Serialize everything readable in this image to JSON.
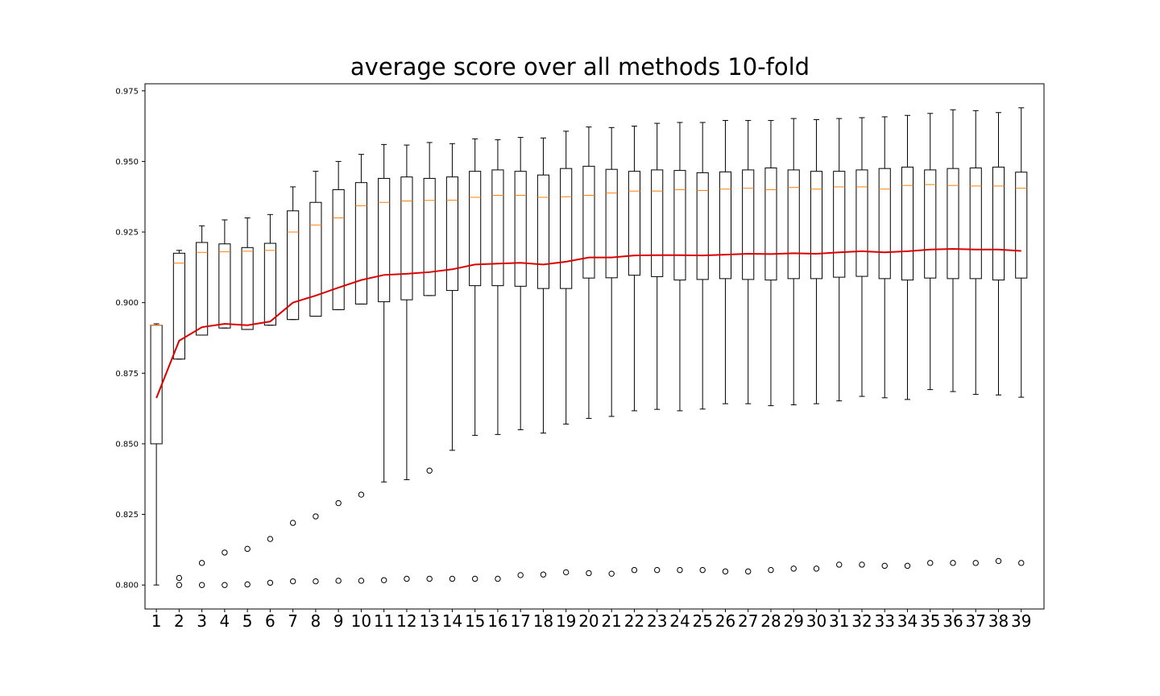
{
  "chart_data": {
    "type": "box",
    "title": "average score over all methods 10-fold",
    "xlabel": "",
    "ylabel": "",
    "ylim": [
      0.7915,
      0.9775
    ],
    "yticks": [
      "0.800",
      "0.825",
      "0.850",
      "0.875",
      "0.900",
      "0.925",
      "0.950",
      "0.975"
    ],
    "categories": [
      "1",
      "2",
      "3",
      "4",
      "5",
      "6",
      "7",
      "8",
      "9",
      "10",
      "11",
      "12",
      "13",
      "14",
      "15",
      "16",
      "17",
      "18",
      "19",
      "20",
      "21",
      "22",
      "23",
      "24",
      "25",
      "26",
      "27",
      "28",
      "29",
      "30",
      "31",
      "32",
      "33",
      "34",
      "35",
      "36",
      "37",
      "38",
      "39"
    ],
    "boxes": [
      {
        "whislo": 0.8,
        "q1": 0.85,
        "med": 0.892,
        "q3": 0.892,
        "whishi": 0.8925,
        "fliers": []
      },
      {
        "whislo": 0.88,
        "q1": 0.88,
        "med": 0.914,
        "q3": 0.9175,
        "whishi": 0.9185,
        "fliers": [
          0.8025,
          0.8
        ]
      },
      {
        "whislo": 0.8885,
        "q1": 0.8885,
        "med": 0.9178,
        "q3": 0.9213,
        "whishi": 0.9272,
        "fliers": [
          0.8078,
          0.8
        ]
      },
      {
        "whislo": 0.891,
        "q1": 0.891,
        "med": 0.918,
        "q3": 0.9208,
        "whishi": 0.9293,
        "fliers": [
          0.8115,
          0.8
        ]
      },
      {
        "whislo": 0.8905,
        "q1": 0.8905,
        "med": 0.9182,
        "q3": 0.9195,
        "whishi": 0.93,
        "fliers": [
          0.8128,
          0.8002
        ]
      },
      {
        "whislo": 0.892,
        "q1": 0.892,
        "med": 0.9185,
        "q3": 0.921,
        "whishi": 0.9312,
        "fliers": [
          0.8163,
          0.8008
        ]
      },
      {
        "whislo": 0.894,
        "q1": 0.894,
        "med": 0.925,
        "q3": 0.9325,
        "whishi": 0.941,
        "fliers": [
          0.822,
          0.8013
        ]
      },
      {
        "whislo": 0.8952,
        "q1": 0.8952,
        "med": 0.9275,
        "q3": 0.9355,
        "whishi": 0.9465,
        "fliers": [
          0.8243,
          0.8013
        ]
      },
      {
        "whislo": 0.8975,
        "q1": 0.8975,
        "med": 0.93,
        "q3": 0.94,
        "whishi": 0.95,
        "fliers": [
          0.829,
          0.8015
        ]
      },
      {
        "whislo": 0.8995,
        "q1": 0.8995,
        "med": 0.9343,
        "q3": 0.9425,
        "whishi": 0.9525,
        "fliers": [
          0.832,
          0.8015
        ]
      },
      {
        "whislo": 0.8365,
        "q1": 0.9003,
        "med": 0.9355,
        "q3": 0.944,
        "whishi": 0.956,
        "fliers": [
          0.8017
        ]
      },
      {
        "whislo": 0.8373,
        "q1": 0.901,
        "med": 0.936,
        "q3": 0.9445,
        "whishi": 0.9558,
        "fliers": [
          0.8022
        ]
      },
      {
        "whislo": 0.9025,
        "q1": 0.9025,
        "med": 0.9362,
        "q3": 0.944,
        "whishi": 0.9567,
        "fliers": [
          0.8405,
          0.8022
        ]
      },
      {
        "whislo": 0.8477,
        "q1": 0.9043,
        "med": 0.9363,
        "q3": 0.9445,
        "whishi": 0.9563,
        "fliers": [
          0.8022
        ]
      },
      {
        "whislo": 0.853,
        "q1": 0.906,
        "med": 0.9373,
        "q3": 0.9465,
        "whishi": 0.958,
        "fliers": [
          0.8022
        ]
      },
      {
        "whislo": 0.8533,
        "q1": 0.906,
        "med": 0.938,
        "q3": 0.947,
        "whishi": 0.9577,
        "fliers": [
          0.8022
        ]
      },
      {
        "whislo": 0.855,
        "q1": 0.9058,
        "med": 0.938,
        "q3": 0.9465,
        "whishi": 0.9585,
        "fliers": [
          0.8035
        ]
      },
      {
        "whislo": 0.8538,
        "q1": 0.905,
        "med": 0.9373,
        "q3": 0.9452,
        "whishi": 0.9583,
        "fliers": [
          0.8037
        ]
      },
      {
        "whislo": 0.857,
        "q1": 0.905,
        "med": 0.9375,
        "q3": 0.9475,
        "whishi": 0.9607,
        "fliers": [
          0.8045
        ]
      },
      {
        "whislo": 0.859,
        "q1": 0.9087,
        "med": 0.938,
        "q3": 0.9483,
        "whishi": 0.9622,
        "fliers": [
          0.8042
        ]
      },
      {
        "whislo": 0.8597,
        "q1": 0.9088,
        "med": 0.9388,
        "q3": 0.9472,
        "whishi": 0.962,
        "fliers": [
          0.804
        ]
      },
      {
        "whislo": 0.8617,
        "q1": 0.9097,
        "med": 0.9395,
        "q3": 0.9465,
        "whishi": 0.9625,
        "fliers": [
          0.8053
        ]
      },
      {
        "whislo": 0.8622,
        "q1": 0.9092,
        "med": 0.9395,
        "q3": 0.947,
        "whishi": 0.9635,
        "fliers": [
          0.8053
        ]
      },
      {
        "whislo": 0.8617,
        "q1": 0.908,
        "med": 0.94,
        "q3": 0.9468,
        "whishi": 0.9638,
        "fliers": [
          0.8053
        ]
      },
      {
        "whislo": 0.8623,
        "q1": 0.9082,
        "med": 0.9397,
        "q3": 0.946,
        "whishi": 0.9638,
        "fliers": [
          0.8053
        ]
      },
      {
        "whislo": 0.8642,
        "q1": 0.9085,
        "med": 0.9402,
        "q3": 0.9463,
        "whishi": 0.9645,
        "fliers": [
          0.8048
        ]
      },
      {
        "whislo": 0.8642,
        "q1": 0.9082,
        "med": 0.9405,
        "q3": 0.947,
        "whishi": 0.9645,
        "fliers": [
          0.8048
        ]
      },
      {
        "whislo": 0.8635,
        "q1": 0.908,
        "med": 0.94,
        "q3": 0.9477,
        "whishi": 0.9645,
        "fliers": [
          0.8053
        ]
      },
      {
        "whislo": 0.8638,
        "q1": 0.9085,
        "med": 0.9408,
        "q3": 0.947,
        "whishi": 0.9652,
        "fliers": [
          0.8058
        ]
      },
      {
        "whislo": 0.8642,
        "q1": 0.9085,
        "med": 0.9402,
        "q3": 0.9465,
        "whishi": 0.9648,
        "fliers": [
          0.8058
        ]
      },
      {
        "whislo": 0.8652,
        "q1": 0.909,
        "med": 0.941,
        "q3": 0.9465,
        "whishi": 0.9652,
        "fliers": [
          0.8072
        ]
      },
      {
        "whislo": 0.8668,
        "q1": 0.9093,
        "med": 0.941,
        "q3": 0.947,
        "whishi": 0.9655,
        "fliers": [
          0.8072
        ]
      },
      {
        "whislo": 0.8663,
        "q1": 0.9085,
        "med": 0.9402,
        "q3": 0.9475,
        "whishi": 0.9658,
        "fliers": [
          0.8068
        ]
      },
      {
        "whislo": 0.8657,
        "q1": 0.908,
        "med": 0.9415,
        "q3": 0.948,
        "whishi": 0.9663,
        "fliers": [
          0.8068
        ]
      },
      {
        "whislo": 0.8692,
        "q1": 0.9087,
        "med": 0.9418,
        "q3": 0.947,
        "whishi": 0.967,
        "fliers": [
          0.8078
        ]
      },
      {
        "whislo": 0.8685,
        "q1": 0.9085,
        "med": 0.9415,
        "q3": 0.9475,
        "whishi": 0.9683,
        "fliers": [
          0.8078
        ]
      },
      {
        "whislo": 0.8675,
        "q1": 0.9085,
        "med": 0.9413,
        "q3": 0.9477,
        "whishi": 0.968,
        "fliers": [
          0.8078
        ]
      },
      {
        "whislo": 0.8673,
        "q1": 0.908,
        "med": 0.9413,
        "q3": 0.948,
        "whishi": 0.9673,
        "fliers": [
          0.8085
        ]
      },
      {
        "whislo": 0.8665,
        "q1": 0.9087,
        "med": 0.9405,
        "q3": 0.9462,
        "whishi": 0.969,
        "fliers": [
          0.8078
        ]
      }
    ],
    "mean_line": [
      0.8662,
      0.8865,
      0.8913,
      0.8925,
      0.892,
      0.8933,
      0.9,
      0.9025,
      0.9053,
      0.908,
      0.9098,
      0.9102,
      0.9108,
      0.9118,
      0.9135,
      0.9138,
      0.9141,
      0.9135,
      0.9145,
      0.916,
      0.916,
      0.9167,
      0.9168,
      0.9168,
      0.9167,
      0.917,
      0.9173,
      0.9172,
      0.9175,
      0.9173,
      0.9178,
      0.9182,
      0.9178,
      0.9182,
      0.9188,
      0.919,
      0.9188,
      0.9188,
      0.9183
    ],
    "colors": {
      "box": "#000000",
      "median": "#ff7f0e",
      "mean_line": "#dd0000",
      "flier": "#000000"
    },
    "grid": false,
    "legend": "none"
  }
}
